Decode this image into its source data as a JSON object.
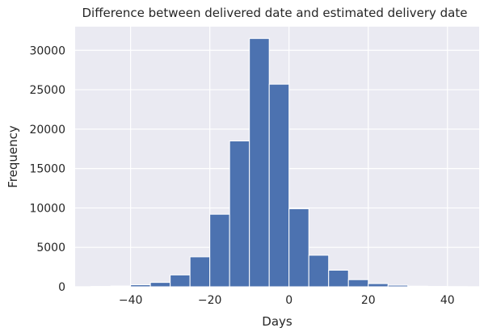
{
  "chart_data": {
    "type": "bar",
    "title": "Difference between delivered date and estimated delivery date",
    "xlabel": "Days",
    "ylabel": "Frequency",
    "xlim": [
      -54,
      48
    ],
    "ylim": [
      0,
      33000
    ],
    "grid": true,
    "xticks": [
      {
        "value": -40,
        "label": "−40"
      },
      {
        "value": -20,
        "label": "−20"
      },
      {
        "value": 0,
        "label": "0"
      },
      {
        "value": 20,
        "label": "20"
      },
      {
        "value": 40,
        "label": "40"
      }
    ],
    "yticks": [
      {
        "value": 0,
        "label": "0"
      },
      {
        "value": 5000,
        "label": "5000"
      },
      {
        "value": 10000,
        "label": "10000"
      },
      {
        "value": 15000,
        "label": "15000"
      },
      {
        "value": 20000,
        "label": "20000"
      },
      {
        "value": 25000,
        "label": "25000"
      },
      {
        "value": 30000,
        "label": "30000"
      }
    ],
    "bin_edges": [
      -50,
      -45,
      -40,
      -35,
      -30,
      -25,
      -20,
      -15,
      -10,
      -5,
      0,
      5,
      10,
      15,
      20,
      25,
      30,
      35,
      40,
      45
    ],
    "values": [
      40,
      100,
      250,
      550,
      1500,
      3800,
      9200,
      18500,
      31500,
      25700,
      9900,
      4000,
      2100,
      900,
      400,
      200,
      80,
      40,
      20
    ],
    "colors": {
      "bar": "#4c72b0",
      "bar_edge": "#ffffff",
      "plot_background": "#eaeaf2",
      "grid": "#ffffff"
    }
  }
}
